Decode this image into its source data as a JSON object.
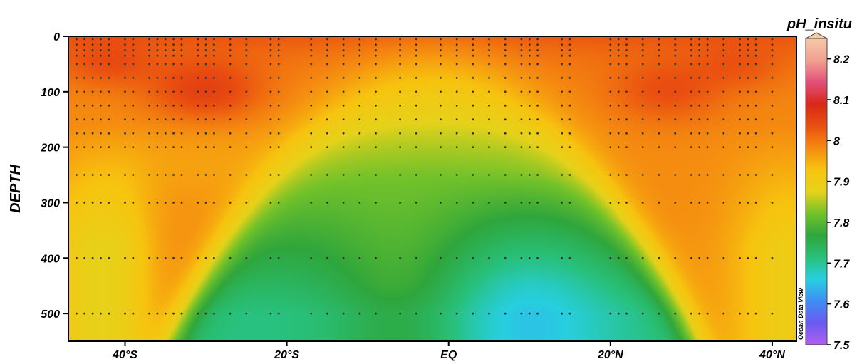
{
  "chart_data": {
    "type": "heatmap",
    "variable": "pH_insitu",
    "ylabel": "DEPTH",
    "xlim": [
      -47,
      43
    ],
    "ylim": [
      550,
      0
    ],
    "x_ticks": [
      {
        "value": -40,
        "label": "40°S"
      },
      {
        "value": -20,
        "label": "20°S"
      },
      {
        "value": 0,
        "label": "EQ"
      },
      {
        "value": 20,
        "label": "20°N"
      },
      {
        "value": 40,
        "label": "40°N"
      }
    ],
    "y_ticks": [
      {
        "value": 0,
        "label": "0"
      },
      {
        "value": 100,
        "label": "100"
      },
      {
        "value": 200,
        "label": "200"
      },
      {
        "value": 300,
        "label": "300"
      },
      {
        "value": 400,
        "label": "400"
      },
      {
        "value": 500,
        "label": "500"
      }
    ],
    "colorbar": {
      "title": "pH_insitu",
      "range": [
        7.5,
        8.25
      ],
      "ticks": [
        "8.2",
        "8.1",
        "8",
        "7.9",
        "7.8",
        "7.7",
        "7.6",
        "7.5"
      ],
      "colors": [
        "#b060f0",
        "#6a5af0",
        "#3f8ef5",
        "#27cfe0",
        "#28c07a",
        "#2fa63c",
        "#72c22a",
        "#e6d21a",
        "#f7c40f",
        "#f58a10",
        "#ea5010",
        "#d82818",
        "#e2507a",
        "#f0a090",
        "#f8c8a8"
      ]
    },
    "station_latitudes": [
      -46,
      -45,
      -44,
      -43,
      -42,
      -40,
      -39,
      -37,
      -36,
      -35,
      -34,
      -33,
      -31,
      -30,
      -29,
      -27,
      -25,
      -22,
      -21,
      -17,
      -15,
      -13,
      -11,
      -9,
      -6,
      -4,
      -1,
      1,
      3,
      5,
      7,
      9,
      10,
      11,
      14,
      15,
      20,
      21,
      22,
      24,
      26,
      28,
      30,
      31,
      32,
      34,
      36,
      37,
      38,
      40
    ],
    "sample_depths": [
      5,
      15,
      25,
      35,
      50,
      75,
      100,
      125,
      150,
      175,
      200,
      250,
      300,
      400,
      500
    ],
    "watermark": "Ocean Data View"
  }
}
